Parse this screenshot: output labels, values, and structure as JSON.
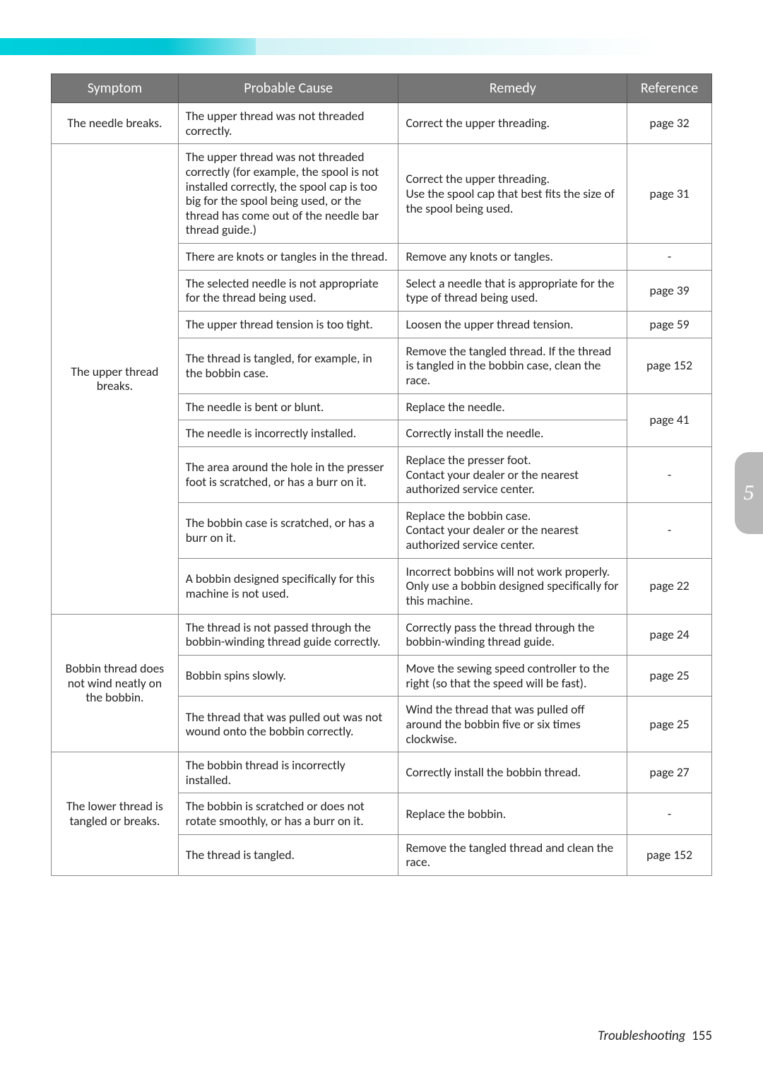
{
  "tab_number": "5",
  "footer": {
    "section": "Troubleshooting",
    "page": "155"
  },
  "headers": {
    "symptom": "Symptom",
    "cause": "Probable Cause",
    "remedy": "Remedy",
    "reference": "Reference"
  },
  "groups": [
    {
      "symptom": "The needle breaks.",
      "rows": [
        {
          "cause": "The upper thread was not threaded correctly.",
          "remedy": "Correct the upper threading.",
          "ref": "page 32"
        }
      ]
    },
    {
      "symptom": "The upper thread breaks.",
      "rows": [
        {
          "cause": "The upper thread was not threaded correctly (for example, the spool is not installed correctly, the spool cap is too big for the spool being used, or the thread has come out of the needle bar thread guide.)",
          "remedy": "Correct the upper threading.\nUse the spool cap that best fits the size of the spool being used.",
          "ref": "page 31"
        },
        {
          "cause": "There are knots or tangles in the thread.",
          "remedy": "Remove any knots or tangles.",
          "ref": "-"
        },
        {
          "cause": "The selected needle is not appropriate for the thread being used.",
          "remedy": "Select a needle that is appropriate for the type of thread being used.",
          "ref": "page 39"
        },
        {
          "cause": "The upper thread tension is too tight.",
          "remedy": "Loosen the upper thread tension.",
          "ref": "page 59"
        },
        {
          "cause": "The thread is tangled, for example, in the bobbin case.",
          "remedy": "Remove the tangled thread. If the thread is tangled in the bobbin case, clean the race.",
          "ref": "page 152"
        },
        {
          "cause": "The needle is bent or blunt.",
          "remedy": "Replace the needle.",
          "ref": "page 41",
          "ref_rowspan": 2
        },
        {
          "cause": "The needle is incorrectly installed.",
          "remedy": "Correctly install the needle.",
          "ref": null
        },
        {
          "cause": "The area around the hole in the presser foot is scratched, or has a burr on it.",
          "remedy": "Replace the presser foot.\nContact your dealer or the nearest authorized service center.",
          "ref": "-"
        },
        {
          "cause": "The bobbin case is scratched, or has a burr on it.",
          "remedy": "Replace the bobbin case.\nContact your dealer or the nearest authorized service center.",
          "ref": "-"
        },
        {
          "cause": "A bobbin designed specifically for this machine is not used.",
          "remedy": "Incorrect bobbins will not work properly. Only use a bobbin designed specifically for this machine.",
          "ref": "page 22"
        }
      ]
    },
    {
      "symptom": "Bobbin thread does not wind neatly on the bobbin.",
      "rows": [
        {
          "cause": "The thread is not passed through the bobbin-winding thread guide correctly.",
          "remedy": "Correctly pass the thread through the bobbin-winding thread guide.",
          "ref": "page 24"
        },
        {
          "cause": "Bobbin spins slowly.",
          "remedy": "Move the sewing speed controller to the right (so that the speed will be fast).",
          "ref": "page 25"
        },
        {
          "cause": "The thread that was pulled out was not wound onto the bobbin correctly.",
          "remedy": "Wind the thread that was pulled off around the bobbin five or six times clockwise.",
          "ref": "page 25"
        }
      ]
    },
    {
      "symptom": "The lower thread is tangled or breaks.",
      "rows": [
        {
          "cause": "The bobbin thread is incorrectly installed.",
          "remedy": "Correctly install the bobbin thread.",
          "ref": "page 27"
        },
        {
          "cause": "The bobbin is scratched or does not rotate smoothly, or has a burr on it.",
          "remedy": "Replace the bobbin.",
          "ref": "-"
        },
        {
          "cause": "The thread is tangled.",
          "remedy": "Remove the tangled thread and clean the race.",
          "ref": "page 152"
        }
      ]
    }
  ]
}
